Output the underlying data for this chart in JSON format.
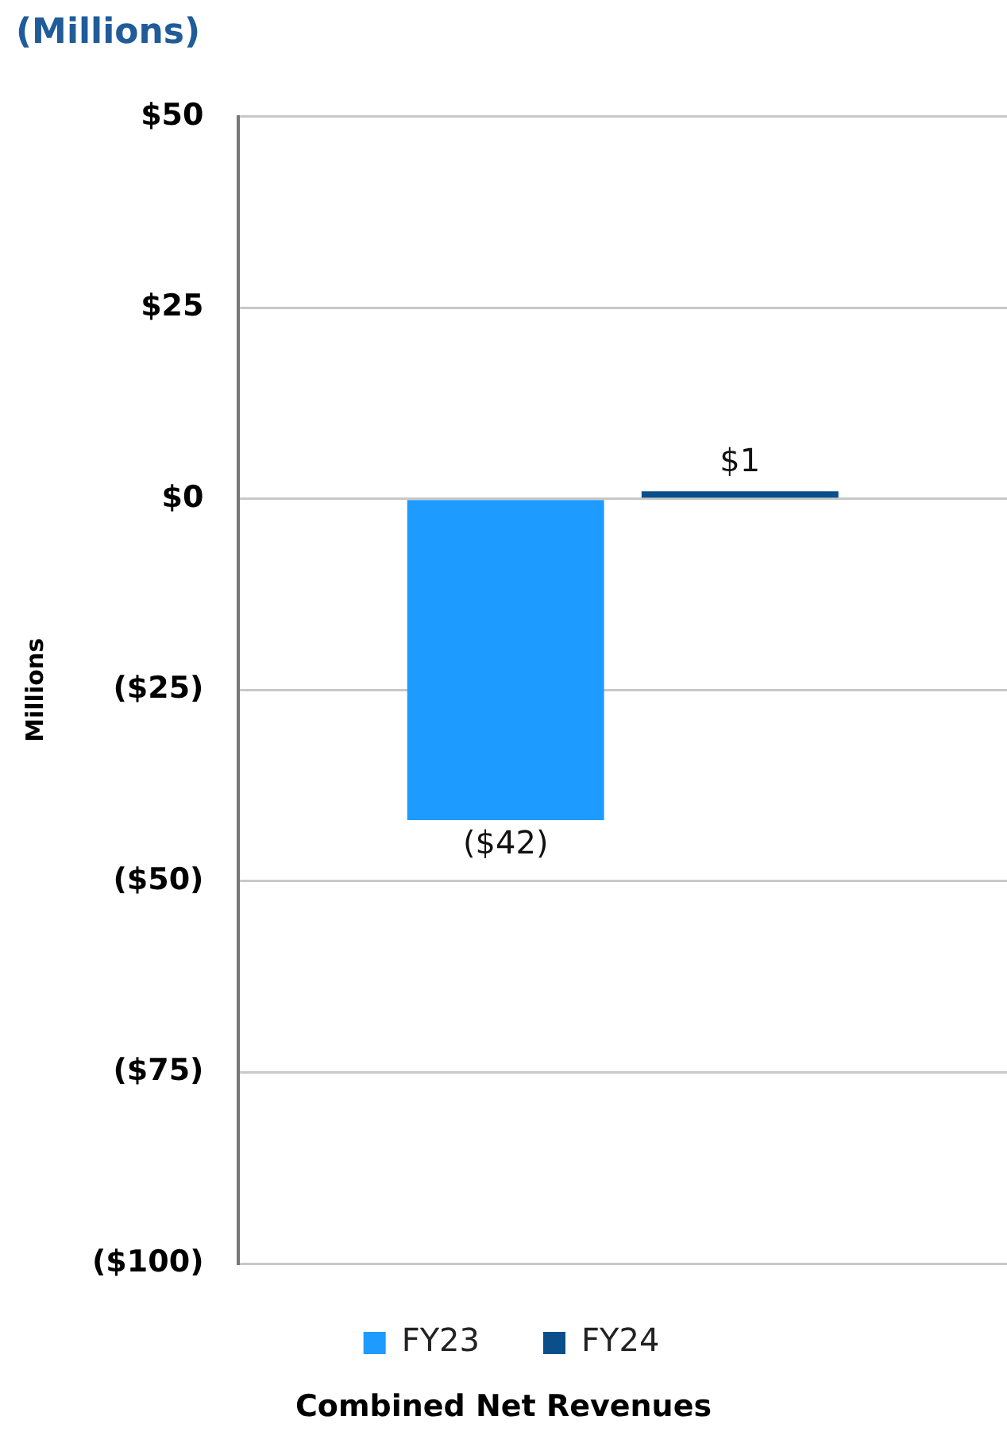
{
  "chart_data": {
    "type": "bar",
    "title": "(Millions)",
    "ylabel": "Millions",
    "xlabel": "Combined Net Revenues",
    "categories": [
      null
    ],
    "series": [
      {
        "name": "FY23",
        "color": "#1e9bff",
        "values": [
          -42
        ],
        "value_labels": [
          "($42)"
        ]
      },
      {
        "name": "FY24",
        "color": "#0b4f8a",
        "values": [
          1
        ],
        "value_labels": [
          "$1"
        ]
      }
    ],
    "ylim": [
      -100,
      50
    ],
    "yticks": [
      {
        "value": 50,
        "label": "$50"
      },
      {
        "value": 25,
        "label": "$25"
      },
      {
        "value": 0,
        "label": "$0"
      },
      {
        "value": -25,
        "label": "($25)"
      },
      {
        "value": -50,
        "label": "($50)"
      },
      {
        "value": -75,
        "label": "($75)"
      },
      {
        "value": -100,
        "label": "($100)"
      }
    ],
    "grid": "y",
    "legend": "bottom"
  }
}
